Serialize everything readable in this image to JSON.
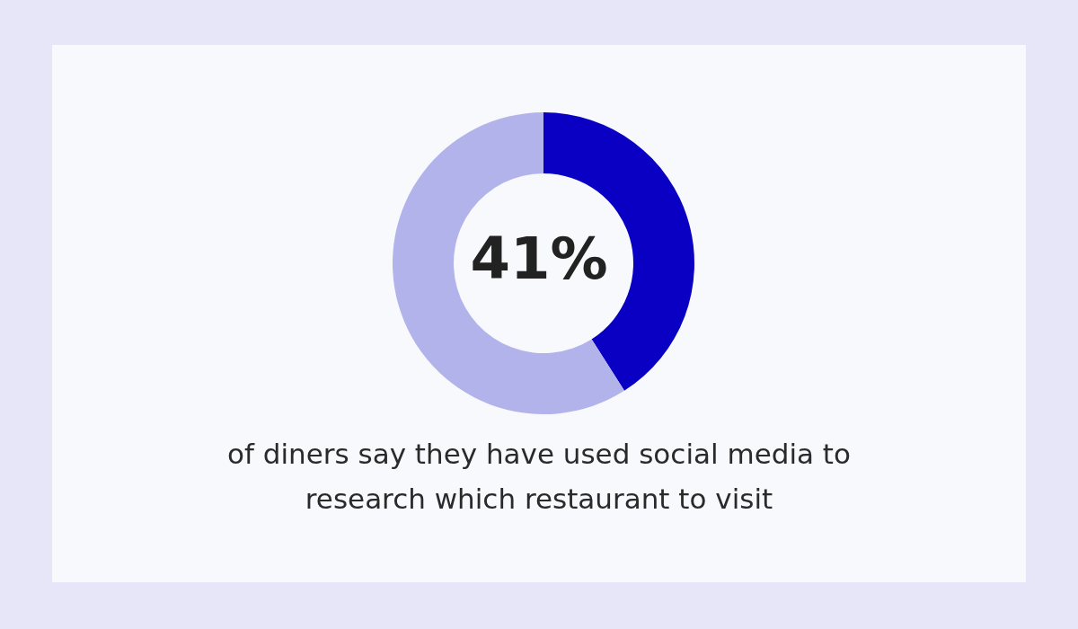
{
  "chart_data": {
    "type": "donut",
    "categories": [
      null,
      null
    ],
    "values": [
      41,
      59
    ],
    "colors": [
      "#0a00c4",
      "#b3b3ec"
    ],
    "annotations": [
      "41%",
      "of diners say they have used social media to research which restaurant to visit"
    ]
  }
}
